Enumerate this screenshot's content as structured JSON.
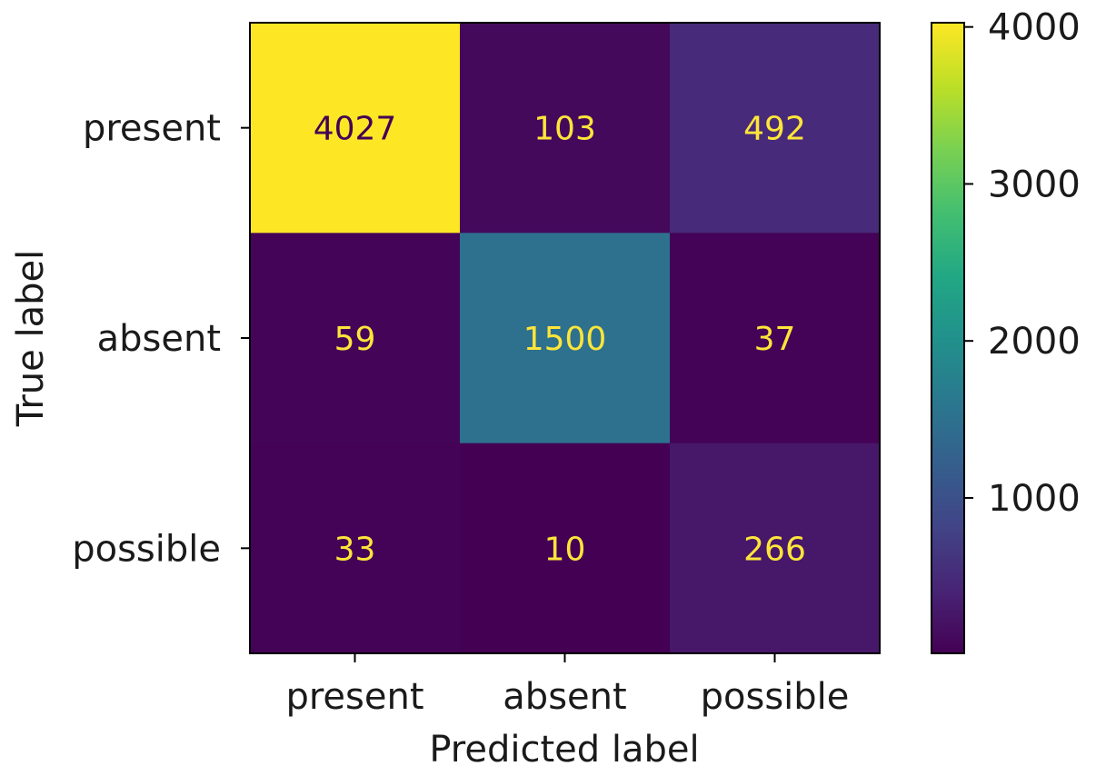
{
  "chart_data": {
    "type": "heatmap",
    "title": "",
    "xlabel": "Predicted label",
    "ylabel": "True label",
    "x_categories": [
      "present",
      "absent",
      "possible"
    ],
    "y_categories": [
      "present",
      "absent",
      "possible"
    ],
    "matrix": [
      [
        4027,
        103,
        492
      ],
      [
        59,
        1500,
        37
      ],
      [
        33,
        10,
        266
      ]
    ],
    "colormap": "viridis",
    "colorbar": {
      "range": [
        10,
        4027
      ],
      "ticks": [
        1000,
        2000,
        3000,
        4000
      ],
      "tick_labels": [
        "1000",
        "2000",
        "3000",
        "4000"
      ]
    },
    "annotation_colors": {
      "dark": "#ffe53a",
      "light": "#440154"
    }
  }
}
